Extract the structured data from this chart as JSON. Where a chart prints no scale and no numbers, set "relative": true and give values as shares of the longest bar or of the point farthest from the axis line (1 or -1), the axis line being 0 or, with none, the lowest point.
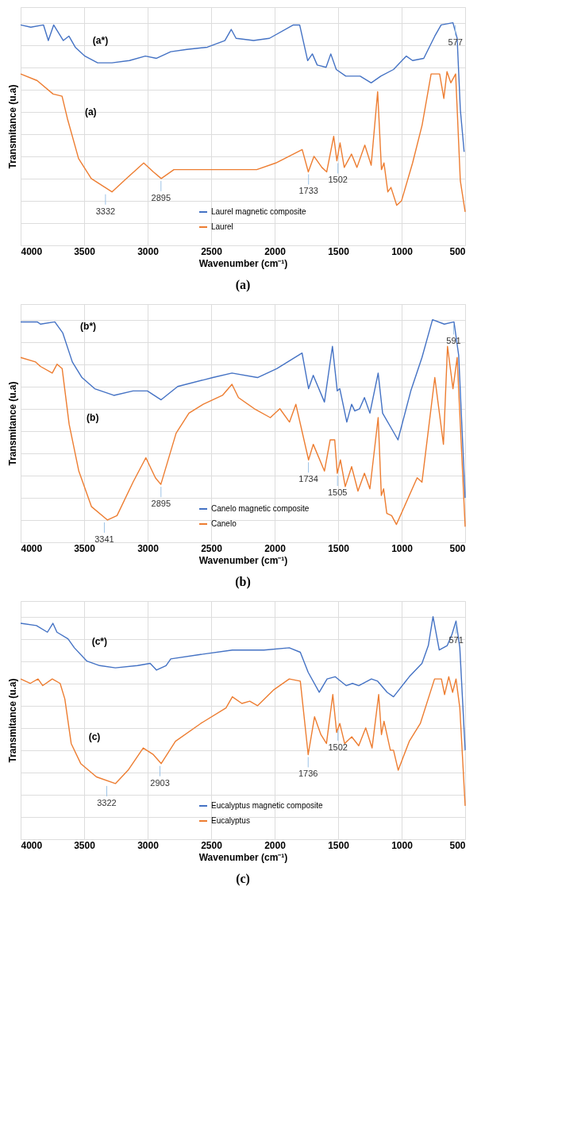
{
  "chart_data": [
    {
      "type": "line",
      "title": "(a)",
      "xlabel": "Wavenumber (cm⁻¹)",
      "ylabel": "Transmitance (u.a)",
      "relative": true,
      "xlim": [
        4000,
        500
      ],
      "xticks": [
        4000,
        3500,
        3000,
        2500,
        2000,
        1500,
        1000,
        500
      ],
      "tick_labels": "x",
      "grid": true,
      "legend": "bottom",
      "marker": "none",
      "line_style": "solid",
      "series": [
        {
          "name": "Laurel magnetic composite",
          "color": "#4472c4",
          "x": [
            4000,
            3920,
            3820,
            3782,
            3740,
            3664,
            3620,
            3570,
            3494,
            3394,
            3281,
            3143,
            3018,
            2930,
            2818,
            2692,
            2530,
            2392,
            2342,
            2304,
            2166,
            2041,
            1853,
            1803,
            1740,
            1703,
            1665,
            1595,
            1558,
            1515,
            1440,
            1327,
            1240,
            1164,
            1064,
            964,
            914,
            826,
            739,
            689,
            596,
            563,
            538,
            508
          ],
          "values": [
            0.99,
            0.98,
            0.99,
            0.92,
            0.99,
            0.92,
            0.94,
            0.89,
            0.85,
            0.82,
            0.82,
            0.83,
            0.85,
            0.84,
            0.87,
            0.88,
            0.89,
            0.92,
            0.97,
            0.93,
            0.92,
            0.93,
            0.99,
            0.99,
            0.83,
            0.86,
            0.81,
            0.8,
            0.86,
            0.79,
            0.76,
            0.76,
            0.73,
            0.76,
            0.79,
            0.85,
            0.83,
            0.84,
            0.94,
            0.99,
            1.0,
            0.93,
            0.61,
            0.42
          ]
        },
        {
          "name": "Laurel",
          "color": "#ed7d31",
          "x": [
            4000,
            3870,
            3745,
            3674,
            3632,
            3544,
            3444,
            3281,
            3168,
            3031,
            2955,
            2893,
            2793,
            2567,
            2317,
            2141,
            1991,
            1783,
            1735,
            1690,
            1628,
            1590,
            1535,
            1510,
            1485,
            1452,
            1395,
            1352,
            1290,
            1240,
            1189,
            1159,
            1139,
            1109,
            1084,
            1039,
            1001,
            914,
            839,
            768,
            701,
            668,
            643,
            613,
            575,
            538,
            500
          ],
          "values": [
            0.77,
            0.74,
            0.68,
            0.67,
            0.57,
            0.39,
            0.3,
            0.24,
            0.3,
            0.37,
            0.33,
            0.3,
            0.34,
            0.34,
            0.34,
            0.34,
            0.37,
            0.43,
            0.33,
            0.4,
            0.35,
            0.33,
            0.49,
            0.38,
            0.46,
            0.35,
            0.41,
            0.35,
            0.45,
            0.36,
            0.69,
            0.34,
            0.37,
            0.24,
            0.26,
            0.18,
            0.2,
            0.37,
            0.54,
            0.77,
            0.77,
            0.66,
            0.78,
            0.73,
            0.77,
            0.29,
            0.15
          ]
        }
      ],
      "annotations": [
        {
          "text": "(a*)",
          "x": 3570,
          "y": 0.89
        },
        {
          "text": "(a)",
          "x": 3632,
          "y": 0.57
        },
        {
          "text": "3332",
          "x": 3332,
          "y": 0.24
        },
        {
          "text": "2895",
          "x": 2895,
          "y": 0.3
        },
        {
          "text": "1733",
          "x": 1733,
          "y": 0.33
        },
        {
          "text": "1502",
          "x": 1502,
          "y": 0.38
        },
        {
          "text": "577",
          "x": 577,
          "y": 1.0
        }
      ]
    },
    {
      "type": "line",
      "title": "(b)",
      "xlabel": "Wavenumber (cm⁻¹)",
      "ylabel": "Transmitance (u.a)",
      "relative": true,
      "xlim": [
        4000,
        500
      ],
      "xticks": [
        4000,
        3500,
        3000,
        2500,
        2000,
        1500,
        1000,
        500
      ],
      "tick_labels": "x",
      "grid": true,
      "legend": "bottom",
      "marker": "none",
      "line_style": "solid",
      "series": [
        {
          "name": "Canelo magnetic composite",
          "color": "#4472c4",
          "x": [
            4000,
            3869,
            3844,
            3731,
            3668,
            3593,
            3517,
            3417,
            3266,
            3115,
            3002,
            2894,
            2763,
            2487,
            2336,
            2135,
            1984,
            1784,
            1733,
            1696,
            1608,
            1545,
            1507,
            1487,
            1432,
            1394,
            1369,
            1331,
            1293,
            1250,
            1185,
            1150,
            1079,
            1029,
            928,
            840,
            757,
            664,
            588,
            551,
            500
          ],
          "values": [
            0.99,
            0.99,
            0.98,
            0.99,
            0.94,
            0.81,
            0.74,
            0.69,
            0.66,
            0.68,
            0.68,
            0.64,
            0.7,
            0.74,
            0.76,
            0.74,
            0.78,
            0.85,
            0.69,
            0.75,
            0.63,
            0.88,
            0.68,
            0.69,
            0.54,
            0.62,
            0.59,
            0.6,
            0.65,
            0.58,
            0.76,
            0.58,
            0.51,
            0.46,
            0.68,
            0.83,
            1.0,
            0.98,
            0.99,
            0.84,
            0.2
          ]
        },
        {
          "name": "Canelo",
          "color": "#ed7d31",
          "x": [
            4000,
            3882,
            3844,
            3751,
            3713,
            3673,
            3618,
            3542,
            3442,
            3316,
            3241,
            3115,
            3014,
            2939,
            2896,
            2776,
            2675,
            2562,
            2411,
            2336,
            2285,
            2160,
            2034,
            1959,
            1883,
            1833,
            1733,
            1696,
            1608,
            1563,
            1527,
            1507,
            1482,
            1444,
            1394,
            1344,
            1293,
            1250,
            1185,
            1160,
            1142,
            1117,
            1079,
            1041,
            878,
            840,
            739,
            671,
            639,
            596,
            563,
            500
          ],
          "values": [
            0.83,
            0.81,
            0.79,
            0.76,
            0.8,
            0.78,
            0.53,
            0.32,
            0.16,
            0.1,
            0.12,
            0.27,
            0.38,
            0.29,
            0.26,
            0.49,
            0.58,
            0.62,
            0.66,
            0.71,
            0.65,
            0.6,
            0.56,
            0.6,
            0.54,
            0.62,
            0.37,
            0.44,
            0.32,
            0.46,
            0.46,
            0.31,
            0.37,
            0.25,
            0.34,
            0.23,
            0.31,
            0.24,
            0.56,
            0.21,
            0.24,
            0.13,
            0.12,
            0.08,
            0.29,
            0.27,
            0.74,
            0.44,
            0.88,
            0.69,
            0.83,
            0.07
          ]
        }
      ],
      "annotations": [
        {
          "text": "(b*)",
          "x": 3668,
          "y": 0.94
        },
        {
          "text": "(b)",
          "x": 3618,
          "y": 0.53
        },
        {
          "text": "3341",
          "x": 3341,
          "y": 0.1
        },
        {
          "text": "2895",
          "x": 2895,
          "y": 0.26
        },
        {
          "text": "1734",
          "x": 1734,
          "y": 0.37
        },
        {
          "text": "1505",
          "x": 1505,
          "y": 0.31
        },
        {
          "text": "591",
          "x": 591,
          "y": 0.99
        }
      ]
    },
    {
      "type": "line",
      "title": "(c)",
      "xlabel": "Wavenumber (cm⁻¹)",
      "ylabel": "Transmitance (u.a)",
      "relative": true,
      "xlim": [
        4000,
        500
      ],
      "xticks": [
        4000,
        3500,
        3000,
        2500,
        2000,
        1500,
        1000,
        500
      ],
      "tick_labels": "x",
      "grid": true,
      "legend": "bottom",
      "marker": "none",
      "line_style": "solid",
      "series": [
        {
          "name": "Eucalyptus magnetic composite",
          "color": "#4472c4",
          "x": [
            4000,
            3876,
            3789,
            3746,
            3714,
            3627,
            3577,
            3478,
            3378,
            3254,
            3079,
            2980,
            2930,
            2855,
            2818,
            2582,
            2333,
            2084,
            1885,
            1798,
            1736,
            1649,
            1587,
            1524,
            1437,
            1387,
            1338,
            1238,
            1189,
            1114,
            1064,
            940,
            840,
            790,
            753,
            704,
            641,
            604,
            572,
            542,
            500
          ],
          "values": [
            0.97,
            0.96,
            0.93,
            0.97,
            0.93,
            0.9,
            0.86,
            0.8,
            0.78,
            0.77,
            0.78,
            0.79,
            0.76,
            0.78,
            0.81,
            0.83,
            0.85,
            0.85,
            0.86,
            0.84,
            0.75,
            0.66,
            0.72,
            0.73,
            0.69,
            0.7,
            0.69,
            0.72,
            0.71,
            0.66,
            0.64,
            0.73,
            0.79,
            0.87,
            1.0,
            0.85,
            0.87,
            0.92,
            0.98,
            0.86,
            0.4
          ]
        },
        {
          "name": "Eucalyptus",
          "color": "#ed7d31",
          "x": [
            4000,
            3925,
            3863,
            3826,
            3751,
            3689,
            3652,
            3602,
            3527,
            3403,
            3254,
            3154,
            3035,
            2955,
            2893,
            2781,
            2582,
            2383,
            2333,
            2258,
            2196,
            2134,
            2010,
            1885,
            1798,
            1736,
            1686,
            1636,
            1592,
            1542,
            1512,
            1487,
            1449,
            1393,
            1338,
            1283,
            1233,
            1181,
            1159,
            1139,
            1089,
            1064,
            1027,
            940,
            853,
            741,
            687,
            662,
            629,
            599,
            572,
            542,
            500
          ],
          "values": [
            0.72,
            0.7,
            0.72,
            0.69,
            0.72,
            0.7,
            0.63,
            0.43,
            0.34,
            0.28,
            0.25,
            0.31,
            0.41,
            0.38,
            0.34,
            0.44,
            0.52,
            0.59,
            0.64,
            0.61,
            0.62,
            0.6,
            0.67,
            0.72,
            0.71,
            0.38,
            0.55,
            0.47,
            0.43,
            0.65,
            0.48,
            0.52,
            0.43,
            0.46,
            0.42,
            0.5,
            0.41,
            0.65,
            0.47,
            0.53,
            0.4,
            0.4,
            0.31,
            0.44,
            0.52,
            0.72,
            0.72,
            0.65,
            0.73,
            0.66,
            0.72,
            0.59,
            0.15
          ]
        }
      ],
      "annotations": [
        {
          "text": "(c*)",
          "x": 3577,
          "y": 0.86
        },
        {
          "text": "(c)",
          "x": 3602,
          "y": 0.43
        },
        {
          "text": "3322",
          "x": 3322,
          "y": 0.25
        },
        {
          "text": "2903",
          "x": 2903,
          "y": 0.34
        },
        {
          "text": "1736",
          "x": 1736,
          "y": 0.38
        },
        {
          "text": "1502",
          "x": 1502,
          "y": 0.5
        },
        {
          "text": "571",
          "x": 571,
          "y": 0.98
        }
      ]
    }
  ]
}
